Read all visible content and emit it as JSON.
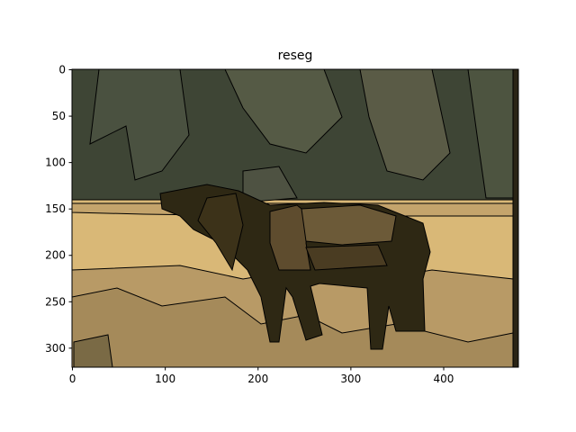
{
  "chart_data": {
    "type": "image",
    "title": "reseg",
    "xlim": [
      -0.5,
      480.5
    ],
    "ylim": [
      320.5,
      -0.5
    ],
    "xticks": [
      0,
      100,
      200,
      300,
      400
    ],
    "yticks": [
      0,
      50,
      100,
      150,
      200,
      250,
      300
    ]
  }
}
